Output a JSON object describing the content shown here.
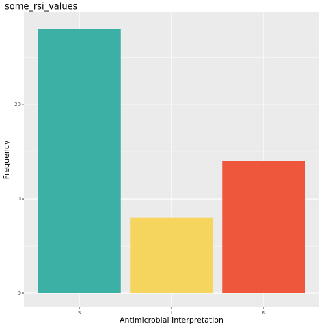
{
  "chart_data": {
    "type": "bar",
    "title": "some_rsi_values",
    "x_label": "Antimicrobial Interpretation",
    "y_label": "Frequency",
    "categories": [
      "S",
      "I",
      "R"
    ],
    "values": [
      28,
      8,
      14
    ],
    "colors": [
      "#3DB0A5",
      "#F6D55F",
      "#EE573B"
    ],
    "ylim": [
      -1.45,
      29.8
    ],
    "yticks": [
      0,
      10,
      20
    ],
    "minor_yticks": [
      5,
      15,
      25
    ],
    "grid": true
  }
}
